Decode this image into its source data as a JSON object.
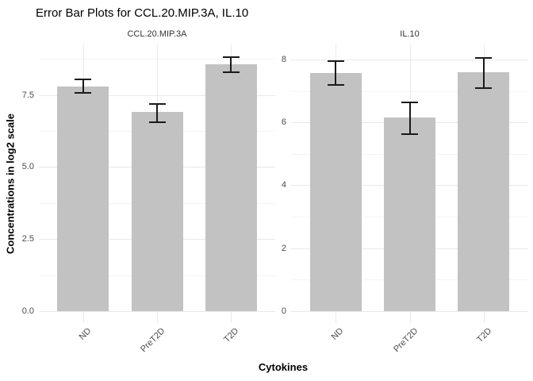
{
  "chart_data": {
    "type": "bar",
    "title": "Error Bar Plots for CCL.20.MIP.3A, IL.10",
    "xlabel": "Cytokines",
    "ylabel": "Concentrations in log2 scale",
    "categories": [
      "ND",
      "PreT2D",
      "T2D"
    ],
    "legend": "none",
    "grid": "on",
    "bar_color": "#C2C2C2",
    "error_bar_color": "#1A1A1A",
    "facets": [
      {
        "name": "CCL.20.MIP.3A",
        "ylim": [
          -0.41,
          9.25
        ],
        "yticks": [
          0.0,
          2.5,
          5.0,
          7.5
        ],
        "ytick_labels": [
          "0.0",
          "2.5",
          "5.0",
          "7.5"
        ],
        "yminor": [
          1.25,
          3.75,
          6.25,
          8.75
        ],
        "series": [
          {
            "name": "mean",
            "values": [
              7.8,
              6.9,
              8.57
            ]
          }
        ],
        "err_low": [
          7.57,
          6.54,
          8.3
        ],
        "err_high": [
          8.08,
          7.22,
          8.83
        ]
      },
      {
        "name": "IL.10",
        "ylim": [
          -0.38,
          8.48
        ],
        "yticks": [
          0,
          2,
          4,
          6,
          8
        ],
        "ytick_labels": [
          "0",
          "2",
          "4",
          "6",
          "8"
        ],
        "yminor": [
          1,
          3,
          5,
          7
        ],
        "series": [
          {
            "name": "mean",
            "values": [
              7.58,
              6.15,
              7.59
            ]
          }
        ],
        "err_low": [
          7.2,
          5.62,
          7.1
        ],
        "err_high": [
          7.97,
          6.67,
          8.08
        ]
      }
    ]
  }
}
